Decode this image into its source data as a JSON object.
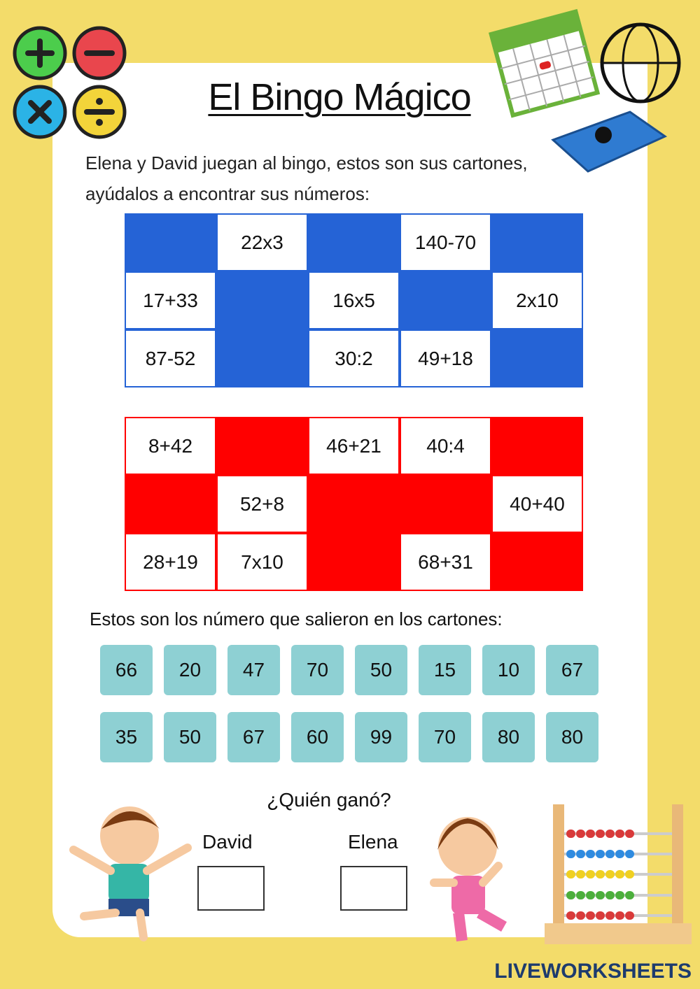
{
  "title": "El Bingo Mágico",
  "intro": [
    "Elena y David juegan al bingo, estos son sus cartones,",
    "ayúdalos a encontrar sus números:"
  ],
  "cards": [
    {
      "color": "#2563d6",
      "rows": [
        [
          null,
          "22x3",
          null,
          "140-70",
          null
        ],
        [
          "17+33",
          null,
          "16x5",
          null,
          "2x10"
        ],
        [
          "87-52",
          null,
          "30:2",
          "49+18",
          null
        ]
      ]
    },
    {
      "color": "#ff0000",
      "rows": [
        [
          "8+42",
          null,
          "46+21",
          "40:4",
          null
        ],
        [
          null,
          "52+8",
          null,
          null,
          "40+40"
        ],
        [
          "28+19",
          "7x10",
          null,
          "68+31",
          null
        ]
      ]
    }
  ],
  "numbers_heading": "Estos son los número que salieron en los cartones:",
  "numbers": [
    [
      66,
      20,
      47,
      70,
      50,
      15,
      10,
      67
    ],
    [
      35,
      50,
      67,
      60,
      99,
      70,
      80,
      80
    ]
  ],
  "question": "¿Quién ganó?",
  "players": [
    "David",
    "Elena"
  ],
  "footer": "LIVEWORKSHEETS"
}
